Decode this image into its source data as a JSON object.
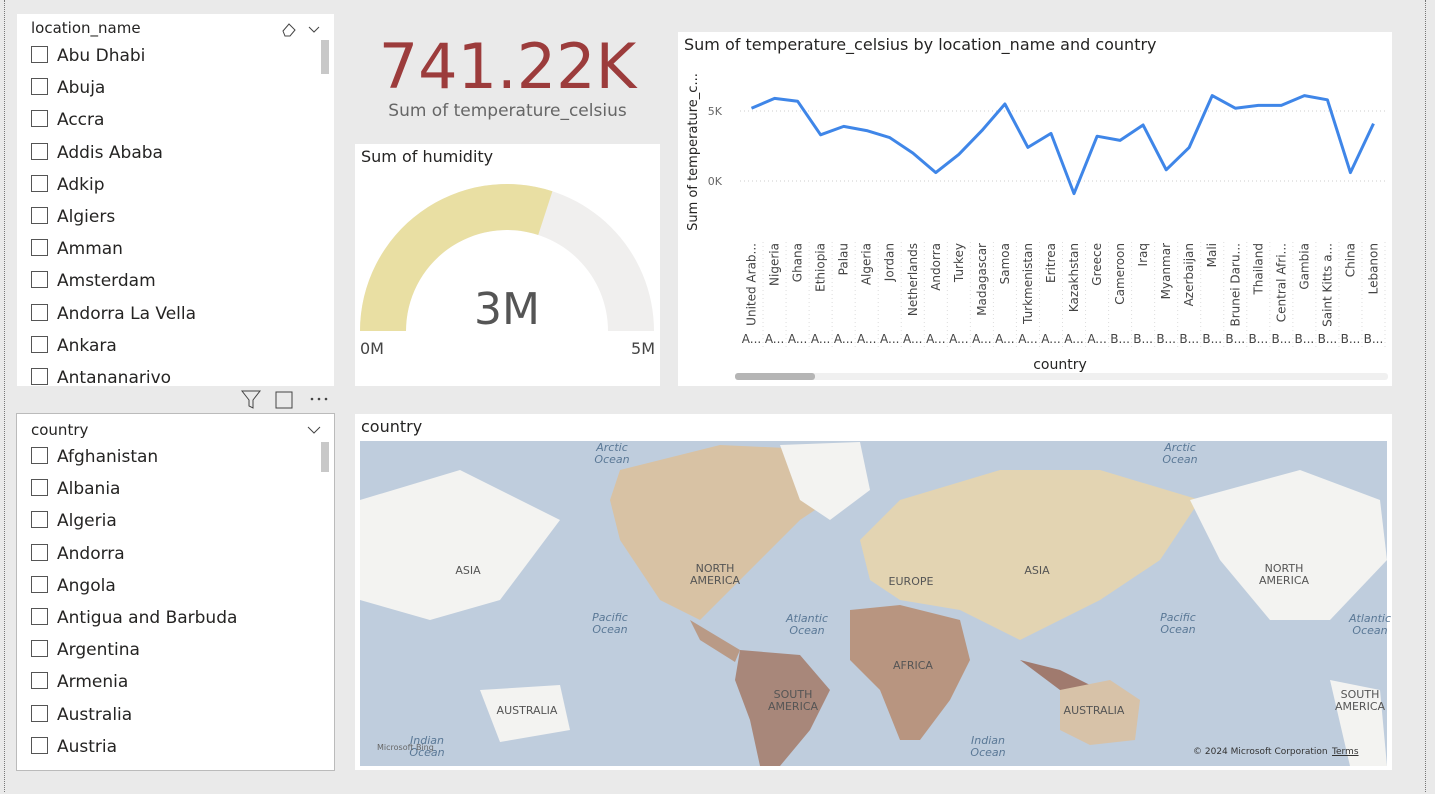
{
  "location_slicer": {
    "title": "location_name",
    "items": [
      "Abu Dhabi",
      "Abuja",
      "Accra",
      "Addis Ababa",
      "Adkip",
      "Algiers",
      "Amman",
      "Amsterdam",
      "Andorra La Vella",
      "Ankara",
      "Antananarivo"
    ]
  },
  "country_slicer": {
    "title": "country",
    "items": [
      "Afghanistan",
      "Albania",
      "Algeria",
      "Andorra",
      "Angola",
      "Antigua and Barbuda",
      "Argentina",
      "Armenia",
      "Australia",
      "Austria"
    ]
  },
  "card": {
    "value": "741.22K",
    "label": "Sum of temperature_celsius"
  },
  "gauge": {
    "title": "Sum of humidity",
    "value": {
      "value": 3,
      "label": "3M"
    },
    "min": {
      "value": 0,
      "label": "0M"
    },
    "max": {
      "value": 5,
      "label": "5M"
    },
    "color": "#e9dfa3"
  },
  "chart_data": {
    "type": "line",
    "title": "Sum of temperature_celsius by location_name and country",
    "y_label": "Sum of temperature_c...",
    "x_label": "country",
    "categories": [
      "United Arab...",
      "Nigeria",
      "Ghana",
      "Ethiopia",
      "Palau",
      "Algeria",
      "Jordan",
      "Netherlands",
      "Andorra",
      "Turkey",
      "Madagascar",
      "Samoa",
      "Turkmenistan",
      "Eritrea",
      "Kazakhstan",
      "Greece",
      "Cameroon",
      "Iraq",
      "Myanmar",
      "Azerbaijan",
      "Mali",
      "Brunei Daru...",
      "Thailand",
      "Central Afri...",
      "Gambia",
      "Saint Kitts a...",
      "China",
      "Lebanon"
    ],
    "category_groups": [
      "A...",
      "A...",
      "A...",
      "A...",
      "A...",
      "A...",
      "A...",
      "A...",
      "A...",
      "A...",
      "A...",
      "A...",
      "A...",
      "A...",
      "A...",
      "A...",
      "B...",
      "B...",
      "B...",
      "B...",
      "B...",
      "B...",
      "B...",
      "B...",
      "B...",
      "B...",
      "B...",
      "B..."
    ],
    "values": [
      5200,
      5900,
      5700,
      3300,
      3900,
      3600,
      3100,
      2000,
      600,
      1900,
      3600,
      5500,
      2400,
      3400,
      -900,
      3200,
      2900,
      4000,
      800,
      2400,
      6100,
      5200,
      5400,
      5400,
      6100,
      5800,
      600,
      4100
    ],
    "color": "#3f86e8",
    "ylim": [
      -4000,
      8000
    ],
    "yticks": [
      {
        "value": 0,
        "label": "0K"
      },
      {
        "value": 5000,
        "label": "5K"
      }
    ],
    "grid": true
  },
  "map": {
    "title": "country",
    "labels": [
      "Arctic Ocean",
      "Arctic Ocean",
      "ASIA",
      "NORTH AMERICA",
      "EUROPE",
      "ASIA",
      "NORTH AMERICA",
      "Pacific Ocean",
      "Atlantic Ocean",
      "Pacific Ocean",
      "Atlantic Ocean",
      "AFRICA",
      "SOUTH AMERICA",
      "AUSTRALIA",
      "AUSTRALIA",
      "SOUTH AMERICA",
      "Indian Ocean",
      "Indian Ocean"
    ],
    "attribution": "Microsoft Bing",
    "copyright": "© 2024 Microsoft Corporation",
    "terms": "Terms"
  }
}
